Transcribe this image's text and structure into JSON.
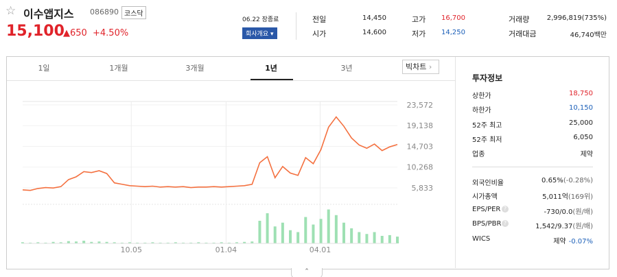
{
  "header": {
    "name": "이수앱지스",
    "code": "086890",
    "market": "코스닥",
    "price": "15,100",
    "change": "650",
    "rate": "+4.50%",
    "date": "06.22 장종료",
    "button": "회사개요"
  },
  "quotes": [
    {
      "label": "전일",
      "value": "14,450"
    },
    {
      "label": "고가",
      "value": "16,700"
    },
    {
      "label": "거래량",
      "value": "2,996,819(735%)"
    },
    {
      "label": "시가",
      "value": "14,600"
    },
    {
      "label": "저가",
      "value": "14,250"
    },
    {
      "label": "거래대금",
      "value": "46,740백만"
    }
  ],
  "tabs": [
    "1일",
    "1개월",
    "3개월",
    "1년",
    "3년"
  ],
  "big_chart": "빅차트",
  "chart_data": {
    "type": "line",
    "color": "#f4703f",
    "x": [
      0,
      1,
      2,
      3,
      4,
      5,
      6,
      7,
      8,
      9,
      10,
      11,
      12,
      13,
      14,
      15,
      16,
      17,
      18,
      19,
      20,
      21,
      22,
      23,
      24,
      25,
      26,
      27,
      28,
      29,
      30,
      31,
      32,
      33,
      34,
      35,
      36,
      37,
      38,
      39,
      40,
      41,
      42,
      43,
      44,
      45,
      46,
      47,
      48,
      49
    ],
    "values": [
      5400,
      5300,
      5700,
      5900,
      5800,
      6100,
      7600,
      8200,
      9300,
      9100,
      9500,
      8900,
      6900,
      6600,
      6300,
      6200,
      6100,
      6200,
      6000,
      6100,
      6000,
      6100,
      5900,
      6000,
      6000,
      6100,
      6000,
      6100,
      6200,
      6300,
      6600,
      11200,
      12500,
      8000,
      10400,
      9000,
      8500,
      12300,
      11000,
      14000,
      18800,
      21000,
      19000,
      16500,
      15000,
      14300,
      15200,
      13800,
      14600,
      15100
    ],
    "xlim": [
      0,
      49
    ],
    "xticks": [
      {
        "value": 14.2,
        "label": "10.05"
      },
      {
        "value": 26.6,
        "label": "01.04"
      },
      {
        "value": 38.9,
        "label": "04.01"
      }
    ],
    "ylim": [
      4660,
      24300
    ],
    "yticks": [
      {
        "value": 5833,
        "label": "5,833"
      },
      {
        "value": 10268,
        "label": "10,268"
      },
      {
        "value": 14703,
        "label": "14,703"
      },
      {
        "value": 19138,
        "label": "19,138"
      },
      {
        "value": 23572,
        "label": "23,572"
      }
    ]
  },
  "volume": {
    "type": "bar",
    "color": "#9ee0b3",
    "ylim": [
      0,
      100
    ],
    "values": [
      3,
      2,
      3,
      2,
      4,
      3,
      6,
      5,
      7,
      4,
      5,
      4,
      3,
      2,
      3,
      2,
      2,
      3,
      2,
      2,
      3,
      2,
      2,
      3,
      2,
      2,
      3,
      2,
      3,
      4,
      5,
      60,
      80,
      45,
      55,
      35,
      30,
      70,
      50,
      65,
      90,
      75,
      55,
      40,
      30,
      25,
      30,
      20,
      22,
      18
    ]
  },
  "info": {
    "title": "투자정보",
    "rows1": [
      {
        "label": "상한가",
        "value": "18,750"
      },
      {
        "label": "하한가",
        "value": "10,150"
      },
      {
        "label": "52주 최고",
        "value": "25,000"
      },
      {
        "label": "52주 최저",
        "value": "6,050"
      },
      {
        "label": "업종",
        "value": "제약"
      }
    ],
    "rows2": [
      {
        "label": "외국인비율",
        "value": "0.65%",
        "sub": "(-0.28%)"
      },
      {
        "label": "시가총액",
        "value": "5,011억",
        "sub": "(169위)"
      },
      {
        "label": "EPS/PER",
        "value": "-730/0.0",
        "sub": "(원/배)"
      },
      {
        "label": "BPS/PBR",
        "value": "1,542/9.37",
        "sub": "(원/배)"
      },
      {
        "label": "WICS",
        "value": "제약",
        "sub": "-0.07%"
      }
    ]
  }
}
